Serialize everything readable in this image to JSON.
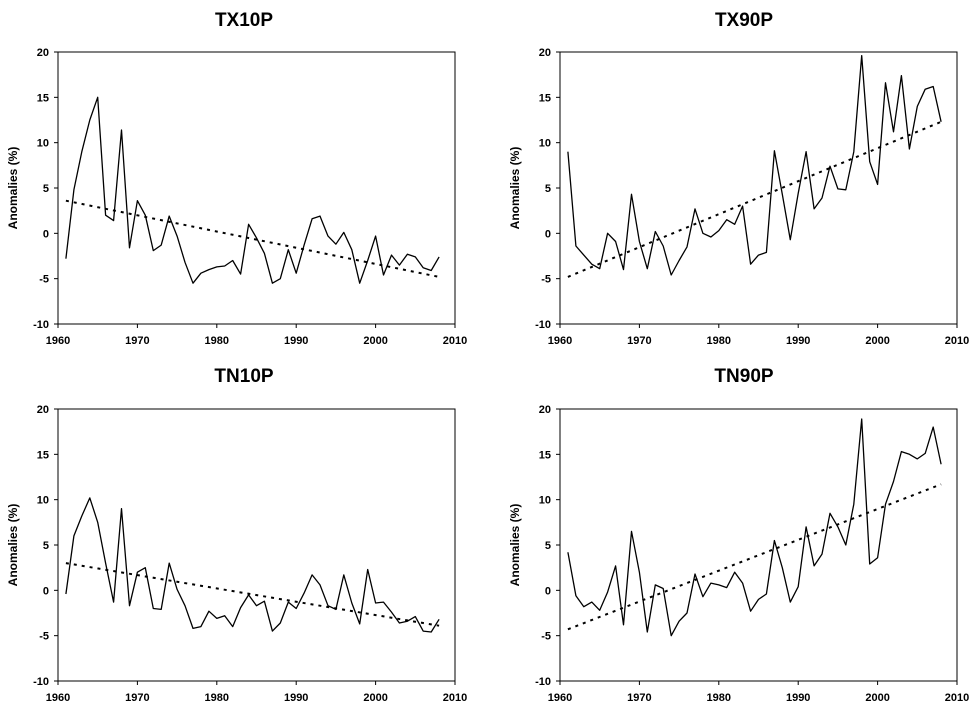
{
  "chart_data": [
    {
      "type": "line",
      "title": "TX10P",
      "xlabel": "",
      "ylabel": "Anomalies (%)",
      "xlim": [
        1960,
        2010
      ],
      "ylim": [
        -10,
        20
      ],
      "xticks": [
        1960,
        1970,
        1980,
        1990,
        2000,
        2010
      ],
      "yticks": [
        -10,
        -5,
        0,
        5,
        10,
        15,
        20
      ],
      "grid": false,
      "series": [
        {
          "style": "solid",
          "x": [
            1961,
            1962,
            1963,
            1964,
            1965,
            1966,
            1967,
            1968,
            1969,
            1970,
            1971,
            1972,
            1973,
            1974,
            1975,
            1976,
            1977,
            1978,
            1979,
            1980,
            1981,
            1982,
            1983,
            1984,
            1985,
            1986,
            1987,
            1988,
            1989,
            1990,
            1991,
            1992,
            1993,
            1994,
            1995,
            1996,
            1997,
            1998,
            1999,
            2000,
            2001,
            2002,
            2003,
            2004,
            2005,
            2006,
            2007,
            2008
          ],
          "y": [
            -2.8,
            4.8,
            9.0,
            12.5,
            15.0,
            2.0,
            1.4,
            11.4,
            -1.6,
            3.6,
            2.0,
            -1.9,
            -1.3,
            1.9,
            -0.3,
            -3.2,
            -5.5,
            -4.4,
            -4.0,
            -3.7,
            -3.6,
            -3.0,
            -4.5,
            1.0,
            -0.5,
            -2.2,
            -5.5,
            -5.0,
            -1.8,
            -4.4,
            -1.3,
            1.6,
            1.9,
            -0.3,
            -1.2,
            0.1,
            -1.8,
            -5.5,
            -3.0,
            -0.3,
            -4.6,
            -2.4,
            -3.5,
            -2.3,
            -2.6,
            -3.8,
            -4.1,
            -2.6
          ]
        },
        {
          "style": "dotted",
          "x": [
            1961,
            2008
          ],
          "y": [
            3.6,
            -4.8
          ]
        }
      ]
    },
    {
      "type": "line",
      "title": "TX90P",
      "xlabel": "",
      "ylabel": "Anomalies (%)",
      "xlim": [
        1960,
        2010
      ],
      "ylim": [
        -10,
        20
      ],
      "xticks": [
        1960,
        1970,
        1980,
        1990,
        2000,
        2010
      ],
      "yticks": [
        -10,
        -5,
        0,
        5,
        10,
        15,
        20
      ],
      "grid": false,
      "series": [
        {
          "style": "solid",
          "x": [
            1961,
            1962,
            1963,
            1964,
            1965,
            1966,
            1967,
            1968,
            1969,
            1970,
            1971,
            1972,
            1973,
            1974,
            1975,
            1976,
            1977,
            1978,
            1979,
            1980,
            1981,
            1982,
            1983,
            1984,
            1985,
            1986,
            1987,
            1988,
            1989,
            1990,
            1991,
            1992,
            1993,
            1994,
            1995,
            1996,
            1997,
            1998,
            1999,
            2000,
            2001,
            2002,
            2003,
            2004,
            2005,
            2006,
            2007,
            2008
          ],
          "y": [
            9.0,
            -1.4,
            -2.4,
            -3.4,
            -3.9,
            0.0,
            -0.9,
            -4.0,
            4.3,
            -0.9,
            -3.9,
            0.2,
            -1.4,
            -4.6,
            -3.0,
            -1.5,
            2.7,
            0.0,
            -0.4,
            0.3,
            1.5,
            1.0,
            3.0,
            -3.4,
            -2.4,
            -2.1,
            9.1,
            4.3,
            -0.7,
            4.4,
            9.0,
            2.7,
            3.9,
            7.4,
            4.9,
            4.8,
            9.0,
            19.6,
            7.9,
            5.4,
            16.6,
            11.2,
            17.4,
            9.3,
            14.0,
            15.9,
            16.2,
            12.3
          ]
        },
        {
          "style": "dotted",
          "x": [
            1961,
            2008
          ],
          "y": [
            -4.8,
            12.3
          ]
        }
      ]
    },
    {
      "type": "line",
      "title": "TN10P",
      "xlabel": "",
      "ylabel": "Anomalies (%)",
      "xlim": [
        1960,
        2010
      ],
      "ylim": [
        -10,
        20
      ],
      "xticks": [
        1960,
        1970,
        1980,
        1990,
        2000,
        2010
      ],
      "yticks": [
        -10,
        -5,
        0,
        5,
        10,
        15,
        20
      ],
      "grid": false,
      "series": [
        {
          "style": "solid",
          "x": [
            1961,
            1962,
            1963,
            1964,
            1965,
            1966,
            1967,
            1968,
            1969,
            1970,
            1971,
            1972,
            1973,
            1974,
            1975,
            1976,
            1977,
            1978,
            1979,
            1980,
            1981,
            1982,
            1983,
            1984,
            1985,
            1986,
            1987,
            1988,
            1989,
            1990,
            1991,
            1992,
            1993,
            1994,
            1995,
            1996,
            1997,
            1998,
            1999,
            2000,
            2001,
            2002,
            2003,
            2004,
            2005,
            2006,
            2007,
            2008
          ],
          "y": [
            -0.4,
            6.0,
            8.2,
            10.2,
            7.5,
            3.0,
            -1.3,
            9.0,
            -1.7,
            2.0,
            2.5,
            -2.0,
            -2.1,
            3.0,
            0.1,
            -1.7,
            -4.2,
            -4.0,
            -2.3,
            -3.1,
            -2.8,
            -4.0,
            -1.9,
            -0.5,
            -1.7,
            -1.2,
            -4.5,
            -3.6,
            -1.3,
            -2.0,
            -0.3,
            1.7,
            0.6,
            -1.7,
            -2.1,
            1.7,
            -1.4,
            -3.7,
            2.3,
            -1.4,
            -1.3,
            -2.4,
            -3.6,
            -3.4,
            -2.9,
            -4.5,
            -4.6,
            -3.2
          ]
        },
        {
          "style": "dotted",
          "x": [
            1961,
            2008
          ],
          "y": [
            3.0,
            -3.9
          ]
        }
      ]
    },
    {
      "type": "line",
      "title": "TN90P",
      "xlabel": "",
      "ylabel": "Anomalies (%)",
      "xlim": [
        1960,
        2010
      ],
      "ylim": [
        -10,
        20
      ],
      "xticks": [
        1960,
        1970,
        1980,
        1990,
        2000,
        2010
      ],
      "yticks": [
        -10,
        -5,
        0,
        5,
        10,
        15,
        20
      ],
      "grid": false,
      "series": [
        {
          "style": "solid",
          "x": [
            1961,
            1962,
            1963,
            1964,
            1965,
            1966,
            1967,
            1968,
            1969,
            1970,
            1971,
            1972,
            1973,
            1974,
            1975,
            1976,
            1977,
            1978,
            1979,
            1980,
            1981,
            1982,
            1983,
            1984,
            1985,
            1986,
            1987,
            1988,
            1989,
            1990,
            1991,
            1992,
            1993,
            1994,
            1995,
            1996,
            1997,
            1998,
            1999,
            2000,
            2001,
            2002,
            2003,
            2004,
            2005,
            2006,
            2007,
            2008
          ],
          "y": [
            4.2,
            -0.6,
            -1.8,
            -1.3,
            -2.2,
            -0.2,
            2.7,
            -3.8,
            6.5,
            2.0,
            -4.6,
            0.6,
            0.2,
            -5.0,
            -3.4,
            -2.5,
            1.8,
            -0.7,
            0.8,
            0.6,
            0.3,
            2.0,
            0.8,
            -2.3,
            -1.0,
            -0.4,
            5.5,
            2.5,
            -1.3,
            0.4,
            7.0,
            2.7,
            4.0,
            8.5,
            7.0,
            5.0,
            9.5,
            18.9,
            2.9,
            3.6,
            9.5,
            12.0,
            15.3,
            15.0,
            14.5,
            15.1,
            18.0,
            13.9
          ]
        },
        {
          "style": "dotted",
          "x": [
            1961,
            2008
          ],
          "y": [
            -4.3,
            11.7
          ]
        }
      ]
    }
  ]
}
